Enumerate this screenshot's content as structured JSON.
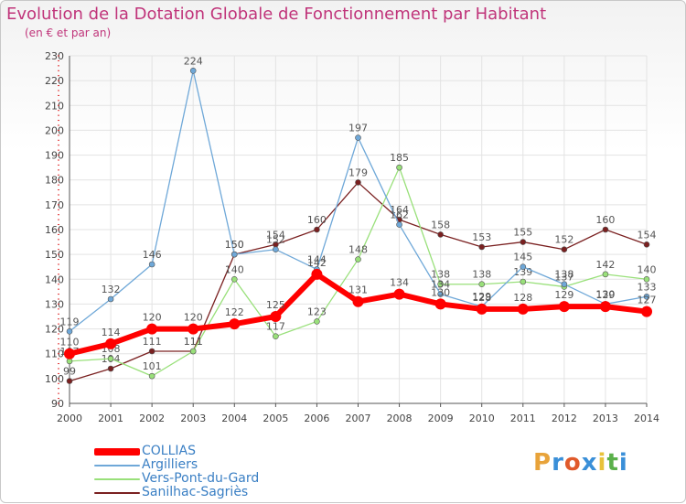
{
  "header": {
    "title": "Evolution de la Dotation Globale de Fonctionnement par Habitant",
    "subtitle": "(en € et par an)"
  },
  "brand": {
    "letters": [
      "P",
      "r",
      "o",
      "x",
      "i",
      "t",
      "i"
    ],
    "colors": [
      "#e8a33a",
      "#3a8fd8",
      "#e05a2b",
      "#3a8fd8",
      "#e8c23a",
      "#5ab04a",
      "#3a8fd8"
    ]
  },
  "colors": {
    "COLLIAS": "#ff0000",
    "Argilliers": "#6fa8d8",
    "Vers-Pont-du-Gard": "#99e07a",
    "Sanilhac-Sagriès": "#7a2020",
    "grid": "#e3e3e3",
    "axis": "#555555",
    "tick_red": "#e03030"
  },
  "chart_data": {
    "type": "line",
    "title": "Evolution de la Dotation Globale de Fonctionnement par Habitant",
    "subtitle": "(en € et par an)",
    "xlabel": "",
    "ylabel": "",
    "ylim": [
      90,
      230
    ],
    "yticks": [
      90,
      100,
      110,
      120,
      130,
      140,
      150,
      160,
      170,
      180,
      190,
      200,
      210,
      220,
      230
    ],
    "grid": true,
    "legend_position": "bottom-left",
    "x": [
      "2000",
      "2001",
      "2002",
      "2003",
      "2004",
      "2005",
      "2006",
      "2007",
      "2008",
      "2009",
      "2010",
      "2011",
      "2012",
      "2013",
      "2014"
    ],
    "series": [
      {
        "name": "Sanilhac-Sagriès",
        "values": [
          99,
          104,
          111,
          111,
          150,
          154,
          160,
          179,
          164,
          158,
          153,
          155,
          152,
          160,
          154
        ]
      },
      {
        "name": "Vers-Pont-du-Gard",
        "values": [
          107,
          108,
          101,
          111,
          140,
          117,
          123,
          148,
          185,
          138,
          138,
          139,
          137,
          142,
          140
        ]
      },
      {
        "name": "Argilliers",
        "values": [
          119,
          132,
          146,
          224,
          150,
          152,
          144,
          197,
          162,
          134,
          129,
          145,
          138,
          130,
          133
        ]
      },
      {
        "name": "COLLIAS",
        "values": [
          110,
          114,
          120,
          120,
          122,
          125,
          142,
          131,
          134,
          130,
          128,
          128,
          129,
          129,
          127
        ]
      }
    ]
  }
}
